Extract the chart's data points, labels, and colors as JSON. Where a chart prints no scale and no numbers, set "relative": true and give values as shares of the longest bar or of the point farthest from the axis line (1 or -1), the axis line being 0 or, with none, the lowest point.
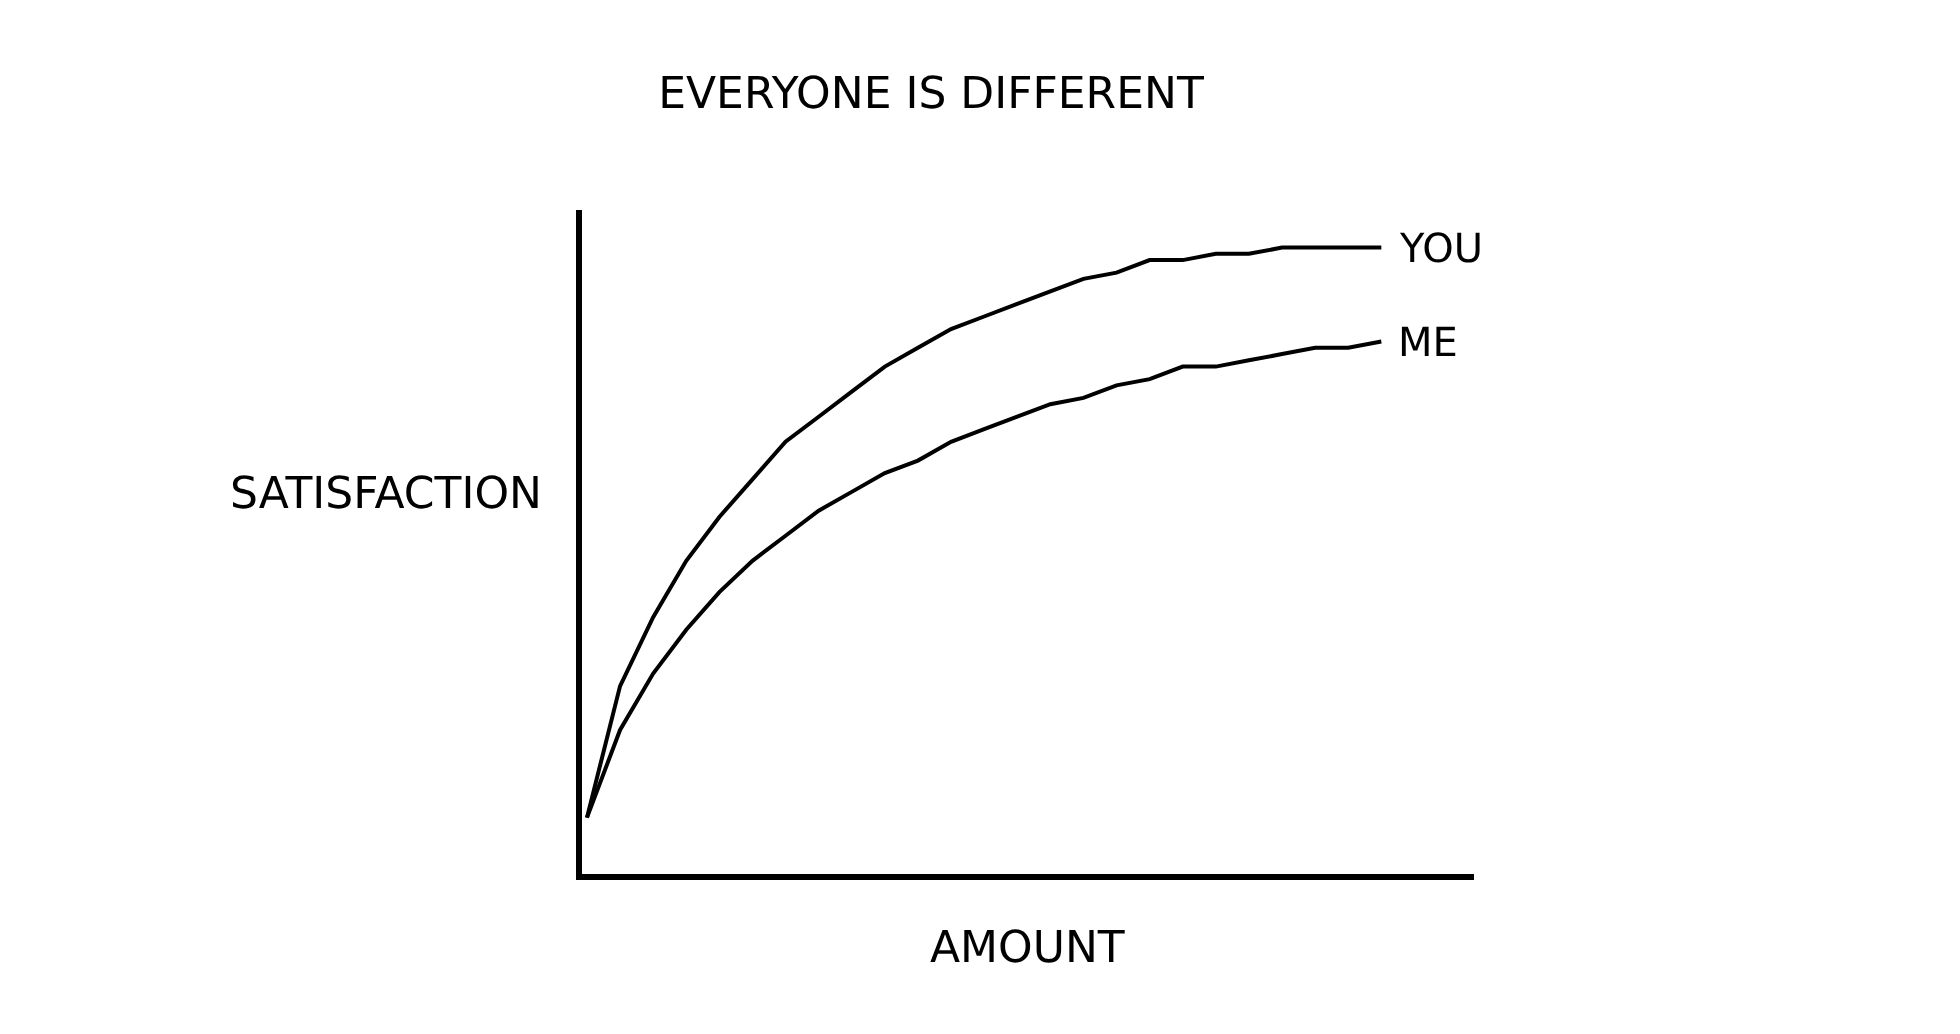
{
  "chart_data": {
    "type": "line",
    "title": "EVERYONE IS DIFFERENT",
    "xlabel": "AMOUNT",
    "ylabel": "SATISFACTION",
    "relative": true,
    "categories": [
      null,
      null,
      null,
      null,
      null,
      null,
      null,
      null,
      null,
      null,
      null,
      null,
      null,
      null,
      null,
      null,
      null,
      null,
      null,
      null,
      null,
      null,
      null,
      null,
      null
    ],
    "series": [
      {
        "name": "YOU",
        "color": "#000000",
        "values": [
          0.09,
          0.3,
          0.41,
          0.5,
          0.57,
          0.63,
          0.69,
          0.73,
          0.77,
          0.81,
          0.84,
          0.87,
          0.89,
          0.91,
          0.93,
          0.95,
          0.96,
          0.98,
          0.98,
          0.99,
          0.99,
          1.0,
          1.0,
          1.0,
          1.0
        ]
      },
      {
        "name": "ME",
        "color": "#000000",
        "values": [
          0.09,
          0.23,
          0.32,
          0.39,
          0.45,
          0.5,
          0.54,
          0.58,
          0.61,
          0.64,
          0.66,
          0.69,
          0.71,
          0.73,
          0.75,
          0.76,
          0.78,
          0.79,
          0.81,
          0.81,
          0.82,
          0.83,
          0.84,
          0.84,
          0.85
        ]
      }
    ]
  }
}
